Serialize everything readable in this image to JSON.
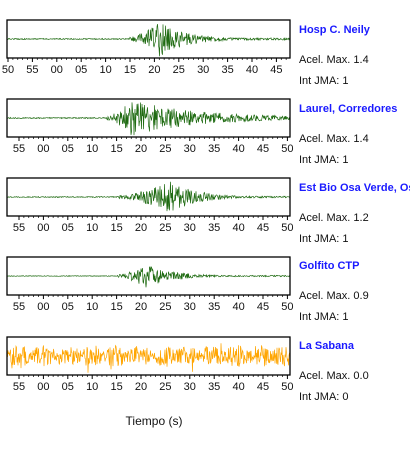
{
  "panels": [
    {
      "station": "Hosp C. Neily",
      "accel": "Acel. Max. 1.4",
      "jma": "Int JMA: 1",
      "color": "#1f6b12",
      "ticks": [
        "50",
        "55",
        "00",
        "05",
        "10",
        "15",
        "20",
        "25",
        "30",
        "35",
        "40",
        "45"
      ]
    },
    {
      "station": "Laurel, Corredores",
      "accel": "Acel. Max. 1.4",
      "jma": "Int JMA: 1",
      "color": "#1f6b12",
      "ticks": [
        "55",
        "00",
        "05",
        "10",
        "15",
        "20",
        "25",
        "30",
        "35",
        "40",
        "45",
        "50"
      ]
    },
    {
      "station": "Est Bio Osa Verde, Osa",
      "accel": "Acel. Max. 1.2",
      "jma": "Int JMA: 1",
      "color": "#1f6b12",
      "ticks": [
        "55",
        "00",
        "05",
        "10",
        "15",
        "20",
        "25",
        "30",
        "35",
        "40",
        "45",
        "50"
      ]
    },
    {
      "station": "Golfito CTP",
      "accel": "Acel. Max. 0.9",
      "jma": "Int JMA: 1",
      "color": "#1f6b12",
      "ticks": [
        "55",
        "00",
        "05",
        "10",
        "15",
        "20",
        "25",
        "30",
        "35",
        "40",
        "45",
        "50"
      ]
    },
    {
      "station": "La Sabana",
      "accel": "Acel. Max. 0.0",
      "jma": "Int JMA: 0",
      "color": "#ffa500",
      "ticks": [
        "55",
        "00",
        "05",
        "10",
        "15",
        "20",
        "25",
        "30",
        "35",
        "40",
        "45",
        "50"
      ]
    }
  ],
  "chart_data": {
    "type": "line",
    "xlabel": "Tiempo (s)",
    "series": [
      {
        "name": "Hosp C. Neily",
        "onset_s": 15,
        "peak_s": 21,
        "peak_amplitude": 1.4,
        "noise_amplitude": 0.02
      },
      {
        "name": "Laurel, Corredores",
        "onset_s": 13,
        "peak_s": 18,
        "peak_amplitude": 1.4,
        "noise_amplitude": 0.02
      },
      {
        "name": "Est Bio Osa Verde, Osa",
        "onset_s": 15,
        "peak_s": 26,
        "peak_amplitude": 1.2,
        "noise_amplitude": 0.02
      },
      {
        "name": "Golfito CTP",
        "onset_s": 15,
        "peak_s": 21,
        "peak_amplitude": 0.9,
        "noise_amplitude": 0.02
      },
      {
        "name": "La Sabana",
        "onset_s": 0,
        "peak_s": 43,
        "peak_amplitude": 0.0,
        "noise_amplitude": 0.5
      }
    ]
  }
}
